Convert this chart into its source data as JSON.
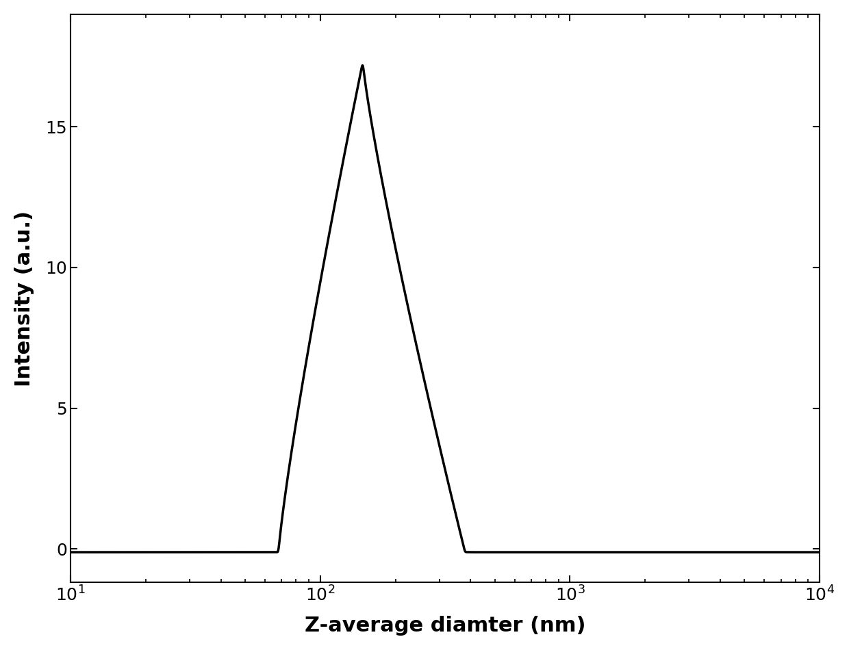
{
  "xlabel": "Z-average diamter (nm)",
  "ylabel": "Intensity (a.u.)",
  "xlim": [
    10,
    10000
  ],
  "ylim": [
    -1.2,
    19
  ],
  "yticks": [
    0,
    5,
    10,
    15
  ],
  "peak_x": 148,
  "peak_y": 17.3,
  "baseline": -0.12,
  "line_color": "#000000",
  "line_width": 2.5,
  "bg_color": "#ffffff",
  "xlabel_fontsize": 22,
  "ylabel_fontsize": 22,
  "tick_fontsize": 18
}
